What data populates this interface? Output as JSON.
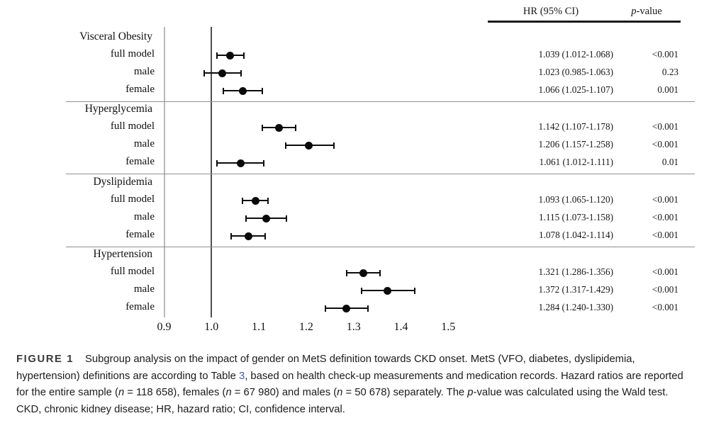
{
  "header": {
    "hr_label": "HR (95% CI)",
    "p_label_segments": [
      {
        "t": "p",
        "s": "i"
      },
      {
        "t": "-value"
      }
    ]
  },
  "chart_data": {
    "type": "forest",
    "title": "",
    "xlabel": "",
    "ylabel": "",
    "axis_range": [
      0.9,
      1.5
    ],
    "reference_line": 1.0,
    "x_tick_labels": [
      "0.9",
      "1.0",
      "1.1",
      "1.2",
      "1.3",
      "1.4",
      "1.5"
    ],
    "x_ticks": [
      0.9,
      1.0,
      1.1,
      1.2,
      1.3,
      1.4,
      1.5
    ],
    "grid": false,
    "legend": "none",
    "columns": [
      "HR (95% CI)",
      "p-value"
    ],
    "groups": [
      {
        "label": "Visceral Obesity",
        "rows": [
          {
            "label": "full model",
            "hr": 1.039,
            "ci_low": 1.012,
            "ci_high": 1.068,
            "hr_text": "1.039 (1.012-1.068)",
            "p": "<0.001"
          },
          {
            "label": "male",
            "hr": 1.023,
            "ci_low": 0.985,
            "ci_high": 1.063,
            "hr_text": "1.023 (0.985-1.063)",
            "p": "0.23"
          },
          {
            "label": "female",
            "hr": 1.066,
            "ci_low": 1.025,
            "ci_high": 1.107,
            "hr_text": "1.066 (1.025-1.107)",
            "p": "0.001"
          }
        ]
      },
      {
        "label": "Hyperglycemia",
        "rows": [
          {
            "label": "full model",
            "hr": 1.142,
            "ci_low": 1.107,
            "ci_high": 1.178,
            "hr_text": "1.142 (1.107-1.178)",
            "p": "<0.001"
          },
          {
            "label": "male",
            "hr": 1.206,
            "ci_low": 1.157,
            "ci_high": 1.258,
            "hr_text": "1.206 (1.157-1.258)",
            "p": "<0.001"
          },
          {
            "label": "female",
            "hr": 1.061,
            "ci_low": 1.012,
            "ci_high": 1.111,
            "hr_text": "1.061 (1.012-1.111)",
            "p": "0.01"
          }
        ]
      },
      {
        "label": "Dyslipidemia",
        "rows": [
          {
            "label": "full model",
            "hr": 1.093,
            "ci_low": 1.065,
            "ci_high": 1.12,
            "hr_text": "1.093 (1.065-1.120)",
            "p": "<0.001"
          },
          {
            "label": "male",
            "hr": 1.115,
            "ci_low": 1.073,
            "ci_high": 1.158,
            "hr_text": "1.115 (1.073-1.158)",
            "p": "<0.001"
          },
          {
            "label": "female",
            "hr": 1.078,
            "ci_low": 1.042,
            "ci_high": 1.114,
            "hr_text": "1.078 (1.042-1.114)",
            "p": "<0.001"
          }
        ]
      },
      {
        "label": "Hypertension",
        "rows": [
          {
            "label": "full model",
            "hr": 1.321,
            "ci_low": 1.286,
            "ci_high": 1.356,
            "hr_text": "1.321 (1.286-1.356)",
            "p": "<0.001"
          },
          {
            "label": "male",
            "hr": 1.372,
            "ci_low": 1.317,
            "ci_high": 1.429,
            "hr_text": "1.372 (1.317-1.429)",
            "p": "<0.001"
          },
          {
            "label": "female",
            "hr": 1.284,
            "ci_low": 1.24,
            "ci_high": 1.33,
            "hr_text": "1.284 (1.240-1.330)",
            "p": "<0.001"
          }
        ]
      }
    ]
  },
  "caption": {
    "lines": [
      [
        {
          "t": "FIGURE 1",
          "s": "tag"
        },
        {
          "t": "Subgroup analysis on the impact of gender on MetS definition towards CKD onset. MetS (VFO, diabetes, dyslipidemia,"
        }
      ],
      [
        {
          "t": "hypertension) definitions are according to Table "
        },
        {
          "t": "3",
          "s": "link"
        },
        {
          "t": ", based on health check-up measurements and medication records. Hazard ratios are reported"
        }
      ],
      [
        {
          "t": "for the entire sample ("
        },
        {
          "t": "n",
          "s": "i"
        },
        {
          "t": " = 118 658), females ("
        },
        {
          "t": "n",
          "s": "i"
        },
        {
          "t": " = 67 980) and males ("
        },
        {
          "t": "n",
          "s": "i"
        },
        {
          "t": " = 50 678) separately. The "
        },
        {
          "t": "p",
          "s": "i"
        },
        {
          "t": "-value was calculated using the Wald test."
        }
      ],
      [
        {
          "t": "CKD, chronic kidney disease; HR, hazard ratio; CI, confidence interval."
        }
      ]
    ]
  }
}
